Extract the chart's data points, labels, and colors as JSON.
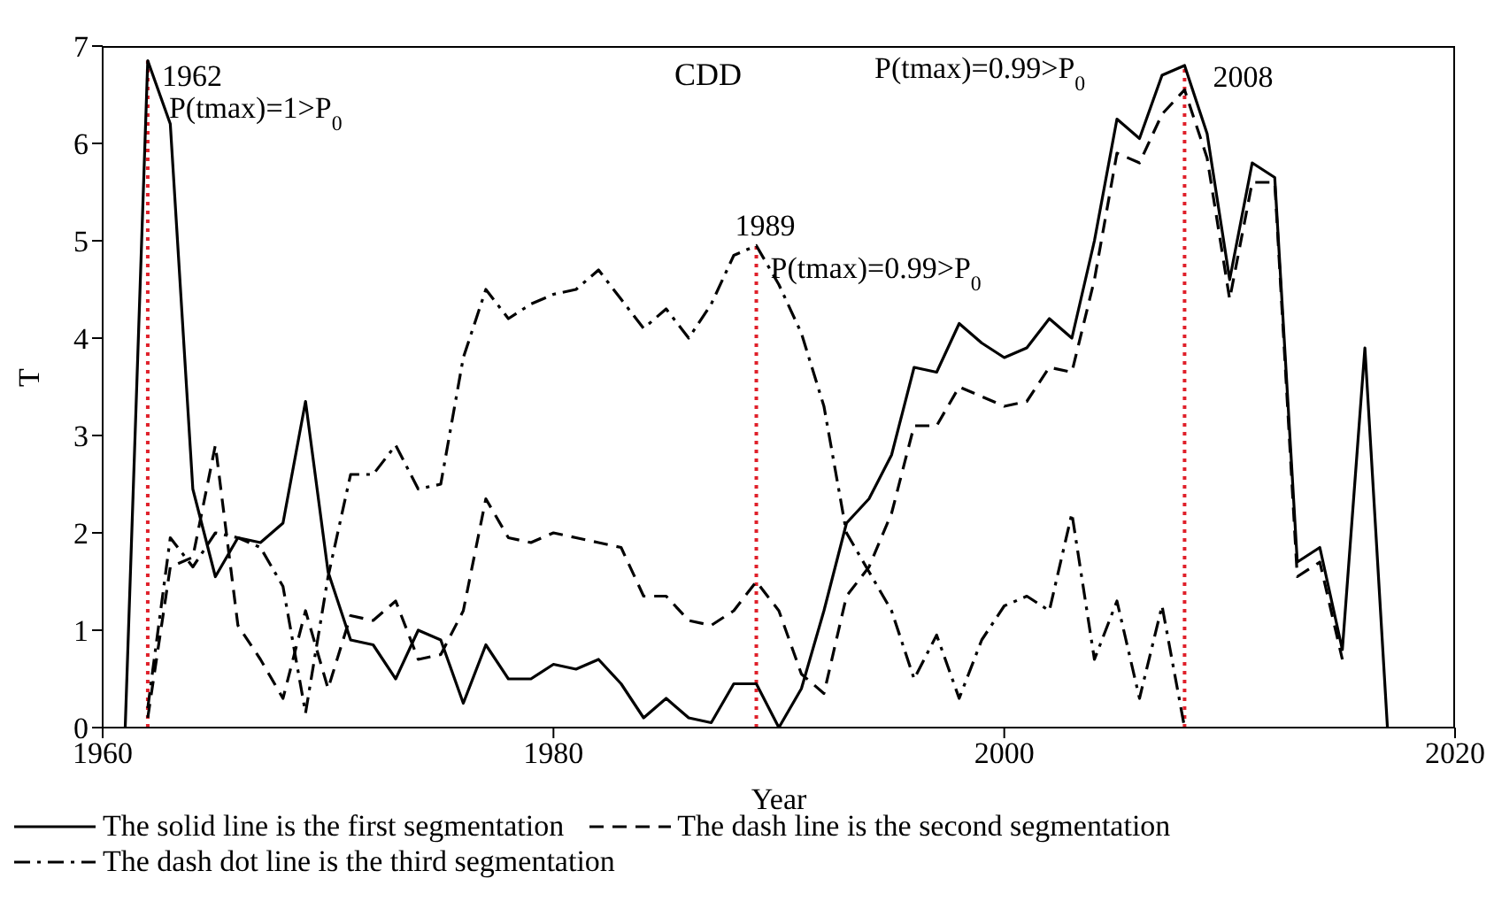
{
  "chart_data": {
    "type": "line",
    "title": "CDD",
    "xlabel": "Year",
    "ylabel": "T",
    "xlim": [
      1960,
      2020
    ],
    "xticks": [
      1960,
      1980,
      2000,
      2020
    ],
    "ylim": [
      0,
      7
    ],
    "yticks": [
      0,
      1,
      2,
      3,
      4,
      5,
      6,
      7
    ],
    "legend": "bottom",
    "marker": "none",
    "series": [
      {
        "name": "The solid line is the first segmentation",
        "color": "#000000",
        "line_style": "solid",
        "x": [
          1961,
          1962,
          1963,
          1964,
          1965,
          1966,
          1967,
          1968,
          1969,
          1970,
          1971,
          1972,
          1973,
          1974,
          1975,
          1976,
          1977,
          1978,
          1979,
          1980,
          1981,
          1982,
          1983,
          1984,
          1985,
          1986,
          1987,
          1988,
          1989,
          1990,
          1991,
          1992,
          1993,
          1994,
          1995,
          1996,
          1997,
          1998,
          1999,
          2000,
          2001,
          2002,
          2003,
          2004,
          2005,
          2006,
          2007,
          2008,
          2009,
          2010,
          2011,
          2012,
          2013,
          2014,
          2015,
          2016,
          2017
        ],
        "values": [
          0,
          6.85,
          6.2,
          2.45,
          1.55,
          1.95,
          1.9,
          2.1,
          3.35,
          1.6,
          0.9,
          0.85,
          0.5,
          1.0,
          0.9,
          0.25,
          0.85,
          0.5,
          0.5,
          0.65,
          0.6,
          0.7,
          0.45,
          0.1,
          0.3,
          0.1,
          0.05,
          0.45,
          0.45,
          0,
          0.4,
          1.2,
          2.1,
          2.35,
          2.8,
          3.7,
          3.65,
          4.15,
          3.95,
          3.8,
          3.9,
          4.2,
          4.0,
          5.0,
          6.25,
          6.05,
          6.7,
          6.8,
          6.1,
          4.6,
          5.8,
          5.65,
          1.7,
          1.85,
          0.8,
          3.9,
          0
        ]
      },
      {
        "name": "The dash line is the second segmentation",
        "color": "#000000",
        "line_style": "dashed",
        "x": [
          1962,
          1963,
          1964,
          1965,
          1966,
          1967,
          1968,
          1969,
          1970,
          1971,
          1972,
          1973,
          1974,
          1975,
          1976,
          1977,
          1978,
          1979,
          1980,
          1981,
          1982,
          1983,
          1984,
          1985,
          1986,
          1987,
          1988,
          1989,
          1990,
          1991,
          1992,
          1993,
          1994,
          1995,
          1996,
          1997,
          1998,
          1999,
          2000,
          2001,
          2002,
          2003,
          2004,
          2005,
          2006,
          2007,
          2008,
          2009,
          2010,
          2011,
          2012,
          2013,
          2014,
          2015
        ],
        "values": [
          0.1,
          1.65,
          1.75,
          2.9,
          1.05,
          0.7,
          0.3,
          1.2,
          0.4,
          1.15,
          1.1,
          1.3,
          0.7,
          0.75,
          1.2,
          2.35,
          1.95,
          1.9,
          2.0,
          1.95,
          1.9,
          1.85,
          1.35,
          1.35,
          1.1,
          1.05,
          1.2,
          1.5,
          1.2,
          0.55,
          0.35,
          1.35,
          1.65,
          2.2,
          3.1,
          3.1,
          3.5,
          3.4,
          3.3,
          3.35,
          3.7,
          3.65,
          4.6,
          5.9,
          5.8,
          6.3,
          6.55,
          5.85,
          4.4,
          5.6,
          5.6,
          1.55,
          1.7,
          0.7
        ]
      },
      {
        "name": "The dash dot line is the third segmentation",
        "color": "#000000",
        "line_style": "dashdot",
        "x": [
          1962,
          1963,
          1964,
          1965,
          1966,
          1967,
          1968,
          1969,
          1970,
          1971,
          1972,
          1973,
          1974,
          1975,
          1976,
          1977,
          1978,
          1979,
          1980,
          1981,
          1982,
          1983,
          1984,
          1985,
          1986,
          1987,
          1988,
          1989,
          1990,
          1991,
          1992,
          1993,
          1994,
          1995,
          1996,
          1997,
          1998,
          1999,
          2000,
          2001,
          2002,
          2003,
          2004,
          2005,
          2006,
          2007,
          2008
        ],
        "values": [
          0.2,
          1.95,
          1.65,
          2.0,
          1.95,
          1.85,
          1.45,
          0.15,
          1.55,
          2.6,
          2.6,
          2.9,
          2.45,
          2.5,
          3.8,
          4.5,
          4.2,
          4.35,
          4.45,
          4.5,
          4.7,
          4.4,
          4.1,
          4.3,
          4.0,
          4.35,
          4.85,
          4.95,
          4.55,
          4.05,
          3.3,
          2.0,
          1.6,
          1.2,
          0.5,
          0.95,
          0.3,
          0.9,
          1.25,
          1.35,
          1.2,
          2.2,
          0.7,
          1.3,
          0.3,
          1.25,
          0
        ]
      }
    ],
    "ref_lines": [
      {
        "axis": "x",
        "value": 1962,
        "color": "#e0202a",
        "line_style": "dotted"
      },
      {
        "axis": "x",
        "value": 1989,
        "color": "#e0202a",
        "line_style": "dotted"
      },
      {
        "axis": "x",
        "value": 2008,
        "color": "#e0202a",
        "line_style": "dotted"
      }
    ],
    "annotations": [
      {
        "text": "1962",
        "x": 1962,
        "y": 6.85
      },
      {
        "text": "P(tmax)=1>P$_{0}$",
        "x": 1962,
        "y": 6.85
      },
      {
        "text": "1989",
        "x": 1989,
        "y": 4.95
      },
      {
        "text": "P(tmax)=0.99>P$_{0}$",
        "x": 1989,
        "y": 4.95
      },
      {
        "text": "2008",
        "x": 2008,
        "y": 6.8
      },
      "P(tmax)=0.99>P$_{0}$"
    ]
  }
}
